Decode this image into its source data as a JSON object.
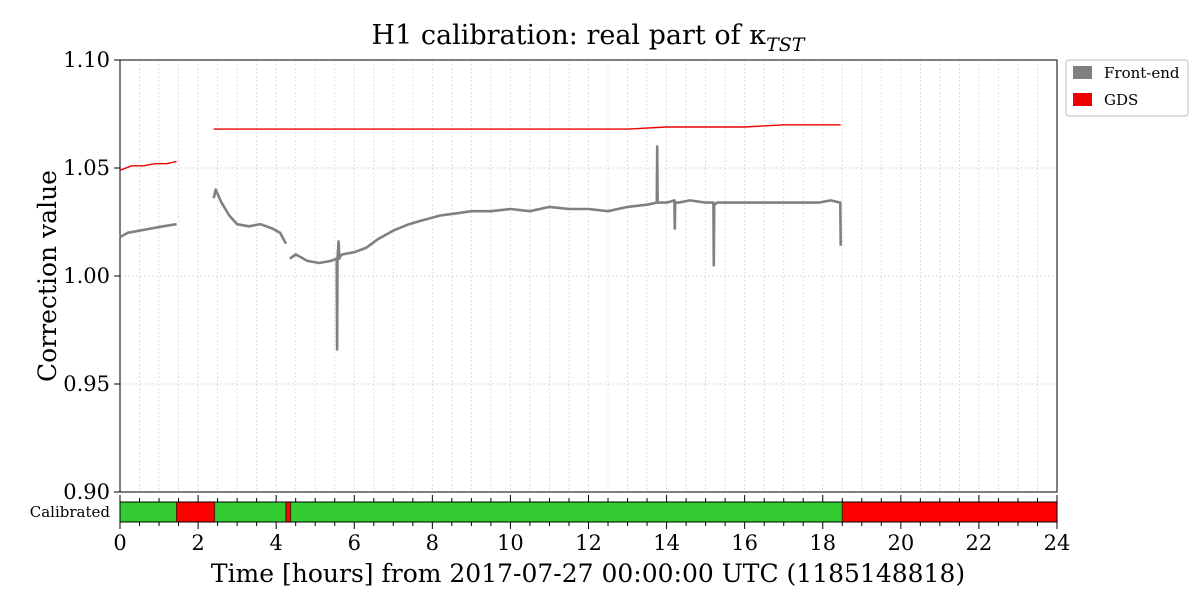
{
  "chart_data": {
    "type": "line",
    "title": "H1 calibration: real part of κ",
    "title_subscript": "TST",
    "xlabel": "Time [hours] from 2017-07-27 00:00:00 UTC (1185148818)",
    "ylabel": "Correction value",
    "xlim": [
      0,
      24
    ],
    "ylim": [
      0.9,
      1.1
    ],
    "x_ticks": [
      "0",
      "2",
      "4",
      "6",
      "8",
      "10",
      "12",
      "14",
      "16",
      "18",
      "20",
      "22",
      "24"
    ],
    "y_ticks": [
      "0.90",
      "0.95",
      "1.00",
      "1.05",
      "1.10"
    ],
    "grid": true,
    "legend_position": "outside-top-right",
    "series": [
      {
        "name": "Front-end",
        "color": "#808080",
        "segments": [
          {
            "x": [
              0.0,
              0.2,
              0.5,
              0.8,
              1.1,
              1.45
            ],
            "y": [
              1.018,
              1.02,
              1.021,
              1.022,
              1.023,
              1.024
            ]
          },
          {
            "x": [
              2.4,
              2.45,
              2.6,
              2.8,
              3.0,
              3.3,
              3.6,
              3.9,
              4.1,
              4.25
            ],
            "y": [
              1.036,
              1.04,
              1.034,
              1.028,
              1.024,
              1.023,
              1.024,
              1.022,
              1.02,
              1.015
            ]
          },
          {
            "x": [
              4.35,
              4.5,
              4.8,
              5.1,
              5.4,
              5.55,
              5.56,
              5.57,
              5.6,
              5.62,
              5.63,
              5.7,
              6.0,
              6.3,
              6.6,
              7.0,
              7.4,
              7.8,
              8.2,
              8.6,
              9.0,
              9.5,
              10.0,
              10.5,
              11.0,
              11.5,
              12.0,
              12.5,
              13.0,
              13.5,
              13.75,
              13.76,
              13.77,
              13.8,
              14.0,
              14.2,
              14.21,
              14.22,
              14.3,
              14.6,
              15.0,
              15.2,
              15.21,
              15.22,
              15.3,
              15.6,
              15.9,
              16.2,
              16.4,
              16.5,
              16.7,
              17.0,
              17.3,
              17.6,
              17.9,
              18.2,
              18.45,
              18.46
            ],
            "y": [
              1.008,
              1.01,
              1.007,
              1.006,
              1.007,
              1.008,
              0.966,
              1.008,
              1.016,
              1.008,
              1.009,
              1.01,
              1.011,
              1.013,
              1.017,
              1.021,
              1.024,
              1.026,
              1.028,
              1.029,
              1.03,
              1.03,
              1.031,
              1.03,
              1.032,
              1.031,
              1.031,
              1.03,
              1.032,
              1.033,
              1.034,
              1.06,
              1.034,
              1.034,
              1.034,
              1.035,
              1.022,
              1.034,
              1.034,
              1.035,
              1.034,
              1.034,
              1.005,
              1.033,
              1.034,
              1.034,
              1.034,
              1.034,
              1.034,
              1.034,
              1.034,
              1.034,
              1.034,
              1.034,
              1.034,
              1.035,
              1.034,
              1.014
            ]
          }
        ]
      },
      {
        "name": "GDS",
        "color": "#ee0000",
        "segments": [
          {
            "x": [
              0.0,
              0.3,
              0.6,
              0.9,
              1.2,
              1.45
            ],
            "y": [
              1.049,
              1.051,
              1.051,
              1.052,
              1.052,
              1.053
            ]
          },
          {
            "x": [
              2.4,
              3.0,
              4.0,
              5.0,
              6.0,
              7.0,
              8.0,
              9.0,
              10.0,
              11.0,
              12.0,
              13.0,
              14.0,
              15.0,
              16.0,
              17.0,
              18.0,
              18.46
            ],
            "y": [
              1.068,
              1.068,
              1.068,
              1.068,
              1.068,
              1.068,
              1.068,
              1.068,
              1.068,
              1.068,
              1.068,
              1.068,
              1.069,
              1.069,
              1.069,
              1.07,
              1.07,
              1.07
            ]
          }
        ]
      }
    ],
    "status_bar": {
      "label": "Calibrated",
      "segments": [
        {
          "start": 0.0,
          "end": 1.45,
          "state": "good"
        },
        {
          "start": 1.45,
          "end": 2.42,
          "state": "bad"
        },
        {
          "start": 2.42,
          "end": 4.25,
          "state": "good"
        },
        {
          "start": 4.25,
          "end": 4.37,
          "state": "bad"
        },
        {
          "start": 4.37,
          "end": 18.5,
          "state": "good"
        },
        {
          "start": 18.5,
          "end": 24.0,
          "state": "bad"
        }
      ],
      "good_color": "#33cc33",
      "bad_color": "#ff0000"
    }
  }
}
